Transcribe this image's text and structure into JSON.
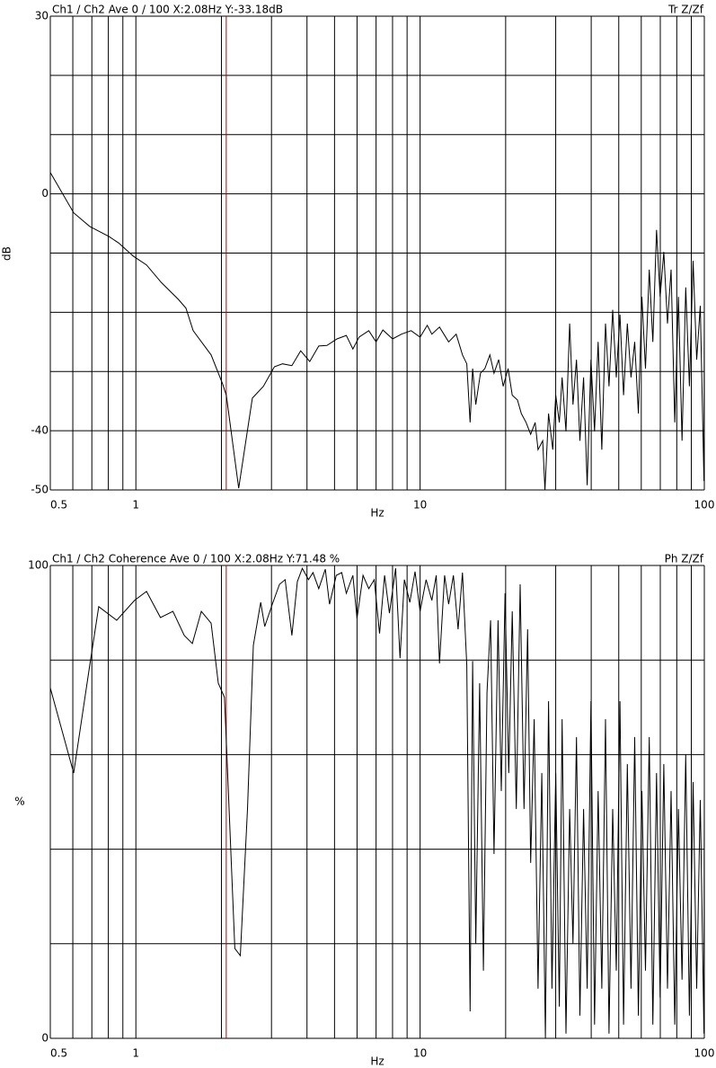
{
  "chart_data": [
    {
      "type": "line",
      "title": "Ch1 / Ch2  Ave 0 / 100  X:2.08Hz  Y:-33.18dB",
      "title_right": "Tr Z/Zf",
      "xlabel": "Hz",
      "ylabel": "dB",
      "xscale": "log",
      "xlim": [
        0.5,
        100
      ],
      "xticks": [
        0.5,
        1,
        10,
        100
      ],
      "xgrid": [
        0.5,
        0.6,
        0.7,
        0.8,
        0.9,
        1,
        2,
        3,
        4,
        5,
        6,
        7,
        8,
        9,
        10,
        20,
        30,
        40,
        50,
        60,
        70,
        80,
        90,
        100
      ],
      "ylim": [
        -50,
        30
      ],
      "yticks": [
        30,
        0,
        -40,
        -50
      ],
      "ygrid": [
        30,
        20,
        10,
        0,
        -10,
        -20,
        -30,
        -40,
        -50
      ],
      "cursor": {
        "x": 2.08,
        "color": "#c00000"
      },
      "color": "#000000",
      "x": [
        0.5,
        0.604,
        0.688,
        0.804,
        0.87,
        0.978,
        1.09,
        1.23,
        1.41,
        1.5,
        1.59,
        1.84,
        2.02,
        2.08,
        2.3,
        2.57,
        2.81,
        3.07,
        3.28,
        3.54,
        3.8,
        4.09,
        4.4,
        4.7,
        5.1,
        5.5,
        5.8,
        6.1,
        6.6,
        7.0,
        7.4,
        8.0,
        8.6,
        9.3,
        10.0,
        10.6,
        11.0,
        11.7,
        12.6,
        13.4,
        14.1,
        14.6,
        15.0,
        15.3,
        15.7,
        16.3,
        16.9,
        17.6,
        18.2,
        18.9,
        19.6,
        20.4,
        21.1,
        22,
        22.7,
        23.6,
        24.5,
        25.4,
        26,
        27,
        27.5,
        28.3,
        29.3,
        30,
        30.9,
        31.6,
        32.6,
        33.6,
        34.5,
        35.5,
        36.5,
        37.6,
        38.7,
        39.9,
        41.1,
        42.3,
        43.6,
        44.9,
        46.2,
        47.6,
        49,
        50.5,
        52,
        53.6,
        55.2,
        56.9,
        58.6,
        60.3,
        62.1,
        64,
        65.9,
        67.9,
        69.9,
        72,
        74.2,
        76.4,
        78.7,
        81.1,
        83.5,
        86,
        88.6,
        91.3,
        94,
        96.8,
        99.7,
        100
      ],
      "values": [
        3.6,
        -3.2,
        -5.5,
        -7.2,
        -8.3,
        -10.5,
        -12,
        -15,
        -17.8,
        -19.3,
        -23.1,
        -27.2,
        -32.1,
        -34,
        -49.7,
        -34.5,
        -32.5,
        -29.2,
        -28.7,
        -29,
        -26.5,
        -28.3,
        -25.7,
        -25.6,
        -24.5,
        -23.9,
        -26.2,
        -24.2,
        -23.1,
        -25,
        -23,
        -24.5,
        -23.7,
        -23.1,
        -24.2,
        -22.2,
        -23.7,
        -22.5,
        -25,
        -23.7,
        -27.2,
        -28.7,
        -38.6,
        -29.5,
        -35.6,
        -30.3,
        -29.5,
        -27.2,
        -30.3,
        -28,
        -32.5,
        -29.5,
        -34,
        -34.8,
        -37.1,
        -38.6,
        -40.6,
        -38.6,
        -43.2,
        -41.7,
        -50,
        -37.1,
        -43.2,
        -34,
        -38.6,
        -31,
        -40.1,
        -21.9,
        -35.6,
        -28,
        -41.7,
        -31,
        -49.2,
        -28,
        -40.1,
        -25,
        -43.2,
        -21.9,
        -32.5,
        -19.6,
        -31,
        -20.4,
        -34,
        -21.9,
        -31,
        -25,
        -37.1,
        -17.4,
        -29.5,
        -12.8,
        -25,
        -6.1,
        -17.4,
        -9.8,
        -21.9,
        -12.8,
        -38.6,
        -17.4,
        -41.7,
        -15.8,
        -32.5,
        -11.3,
        -28,
        -18.9,
        -48.5,
        -17.4
      ]
    },
    {
      "type": "line",
      "title": "Ch1 / Ch2  Coherence Ave 0 / 100  X:2.08Hz  Y:71.48 %",
      "title_right": "Ph Z/Zf",
      "xlabel": "Hz",
      "ylabel": "%",
      "xscale": "log",
      "xlim": [
        0.5,
        100
      ],
      "xticks": [
        0.5,
        1,
        10,
        100
      ],
      "xgrid": [
        0.5,
        0.6,
        0.7,
        0.8,
        0.9,
        1,
        2,
        3,
        4,
        5,
        6,
        7,
        8,
        9,
        10,
        20,
        30,
        40,
        50,
        60,
        70,
        80,
        90,
        100
      ],
      "ylim": [
        0,
        100
      ],
      "yticks": [
        100,
        0
      ],
      "ygrid": [
        100,
        80,
        60,
        40,
        20,
        0
      ],
      "cursor": {
        "x": 2.08,
        "color": "#c00000"
      },
      "color": "#000000",
      "x": [
        0.5,
        0.604,
        0.688,
        0.74,
        0.856,
        0.989,
        1.09,
        1.22,
        1.35,
        1.48,
        1.58,
        1.7,
        1.84,
        1.95,
        2.05,
        2.23,
        2.33,
        2.47,
        2.59,
        2.75,
        2.84,
        3.02,
        3.2,
        3.35,
        3.54,
        3.7,
        3.85,
        4.05,
        4.2,
        4.4,
        4.64,
        4.8,
        5.07,
        5.3,
        5.5,
        5.8,
        6.0,
        6.3,
        6.6,
        6.9,
        7.2,
        7.5,
        7.8,
        8.2,
        8.5,
        8.8,
        9.2,
        9.6,
        10.0,
        10.5,
        11,
        11.4,
        11.7,
        12.2,
        12.6,
        13.1,
        13.6,
        14.1,
        14.6,
        15.0,
        15.3,
        15.7,
        16.2,
        16.7,
        17.2,
        17.7,
        18.2,
        18.8,
        19.3,
        19.9,
        20.5,
        21.1,
        21.8,
        22.5,
        23.2,
        23.9,
        24.5,
        25.2,
        26,
        26.8,
        27.6,
        28.3,
        29.1,
        30,
        30.9,
        31.6,
        32.6,
        33.6,
        34.5,
        35.5,
        36.5,
        37.6,
        38.7,
        39.9,
        41.1,
        42.3,
        43.6,
        44.9,
        46.2,
        47.6,
        49,
        50.5,
        52,
        53.6,
        55.2,
        56.9,
        58.6,
        60.3,
        62.1,
        64,
        65.9,
        67.9,
        69.9,
        72,
        74.2,
        76.4,
        78.7,
        81.1,
        83.5,
        86,
        88.6,
        91.3,
        94,
        96.8,
        99.7,
        100
      ],
      "values": [
        74.1,
        56.1,
        78.9,
        91.3,
        88.4,
        92.6,
        94.5,
        89,
        90.3,
        85.2,
        83.5,
        90.3,
        87.8,
        75.1,
        72.1,
        19,
        17.5,
        48.5,
        83.1,
        92.2,
        87.1,
        91.8,
        96,
        97,
        85.2,
        96.6,
        99.4,
        97,
        98.5,
        95.1,
        99.2,
        91.8,
        97.9,
        98.5,
        94.1,
        97.9,
        88.8,
        97.9,
        95.1,
        97,
        85.6,
        97.9,
        89.9,
        99.4,
        80.4,
        97,
        92.2,
        98.7,
        90.3,
        97,
        92.6,
        97.9,
        79.3,
        97.9,
        91.8,
        97.9,
        86.5,
        98.5,
        78.9,
        5.7,
        79.8,
        20,
        75.1,
        14.3,
        73.2,
        88.4,
        39,
        88.4,
        52.3,
        94.1,
        56.1,
        90.3,
        48.5,
        96,
        48.5,
        86.5,
        37.1,
        67.5,
        10.5,
        56.1,
        0,
        71.3,
        10.5,
        56.1,
        6.7,
        67.5,
        1,
        48.5,
        20,
        63.7,
        4.8,
        48.5,
        10.5,
        71.3,
        2.9,
        52.3,
        10.5,
        67.5,
        1,
        48.5,
        14.3,
        71.3,
        2.9,
        58,
        10.5,
        63.7,
        4.8,
        52.3,
        14.3,
        63.7,
        2.9,
        56.1,
        8.6,
        58,
        10.5,
        52.3,
        2.9,
        48.5,
        12.4,
        60,
        4.8,
        54.2,
        10.5,
        50.4,
        1,
        52.3
      ]
    }
  ]
}
